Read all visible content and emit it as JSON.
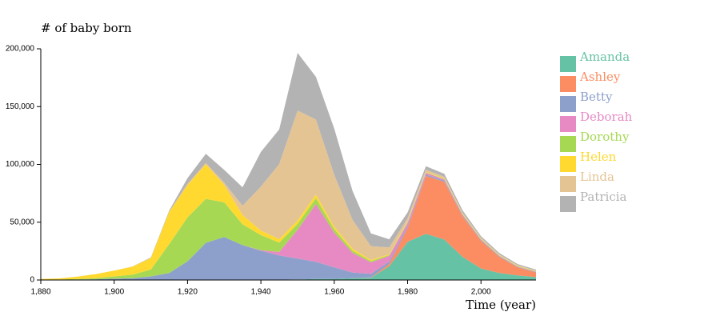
{
  "chart_data": {
    "type": "stacked-area",
    "y_label": "# of baby born",
    "x_label": "Time (year)",
    "x": [
      1880,
      1885,
      1890,
      1895,
      1900,
      1905,
      1910,
      1915,
      1920,
      1925,
      1930,
      1935,
      1940,
      1945,
      1950,
      1955,
      1960,
      1965,
      1970,
      1975,
      1980,
      1985,
      1990,
      1995,
      2000,
      2005,
      2010,
      2015
    ],
    "xlim": [
      1880,
      2015
    ],
    "xticks": [
      {
        "value": 1880,
        "label": "1,880"
      },
      {
        "value": 1900,
        "label": "1,900"
      },
      {
        "value": 1920,
        "label": "1,920"
      },
      {
        "value": 1940,
        "label": "1,940"
      },
      {
        "value": 1960,
        "label": "1,960"
      },
      {
        "value": 1980,
        "label": "1,980"
      },
      {
        "value": 2000,
        "label": "2,000"
      }
    ],
    "ylim": [
      0,
      200000
    ],
    "yticks": [
      0,
      {
        "value": 50000,
        "label": "50,000"
      },
      {
        "value": 100000,
        "label": "100,000"
      },
      {
        "value": 150000,
        "label": "150,000"
      },
      {
        "value": 200000,
        "label": "200,000"
      }
    ],
    "series": [
      {
        "name": "Amanda",
        "color": "#66c2a5",
        "values": [
          100,
          100,
          100,
          100,
          100,
          100,
          100,
          100,
          200,
          200,
          200,
          200,
          300,
          300,
          500,
          800,
          1000,
          1500,
          2000,
          12000,
          33000,
          40000,
          35000,
          20000,
          10000,
          6000,
          4000,
          2500
        ]
      },
      {
        "name": "Ashley",
        "color": "#fc8d62",
        "values": [
          0,
          0,
          0,
          0,
          0,
          0,
          0,
          0,
          0,
          0,
          0,
          0,
          0,
          0,
          0,
          0,
          0,
          0,
          300,
          2000,
          12000,
          50000,
          50000,
          35000,
          24000,
          14000,
          7000,
          4000
        ]
      },
      {
        "name": "Betty",
        "color": "#8da0cb",
        "values": [
          0,
          100,
          300,
          500,
          1000,
          1500,
          3000,
          6000,
          16000,
          32000,
          37000,
          30000,
          25000,
          21000,
          18000,
          15000,
          10000,
          5000,
          3000,
          2000,
          1500,
          1200,
          1000,
          800,
          600,
          500,
          400,
          400
        ]
      },
      {
        "name": "Deborah",
        "color": "#e78ac3",
        "values": [
          0,
          0,
          0,
          0,
          0,
          0,
          0,
          0,
          0,
          0,
          0,
          0,
          500,
          3000,
          25000,
          50000,
          30000,
          17000,
          10000,
          5000,
          3000,
          1500,
          1000,
          700,
          500,
          400,
          300,
          300
        ]
      },
      {
        "name": "Dorothy",
        "color": "#a6d854",
        "values": [
          100,
          200,
          500,
          1000,
          2000,
          3000,
          6000,
          25000,
          38000,
          38000,
          30000,
          18000,
          13000,
          8000,
          5000,
          5000,
          3000,
          2000,
          1000,
          600,
          500,
          400,
          400,
          400,
          300,
          300,
          300,
          300
        ]
      },
      {
        "name": "Helen",
        "color": "#ffd92f",
        "values": [
          600,
          1000,
          2000,
          3500,
          5000,
          7000,
          10000,
          28000,
          28000,
          30000,
          15000,
          8000,
          4000,
          3000,
          3000,
          3000,
          2000,
          1500,
          1000,
          600,
          500,
          400,
          400,
          300,
          300,
          300,
          300,
          300
        ]
      },
      {
        "name": "Linda",
        "color": "#e5c494",
        "values": [
          0,
          0,
          0,
          0,
          0,
          0,
          0,
          0,
          1000,
          1000,
          2000,
          8000,
          38000,
          65000,
          95000,
          65000,
          45000,
          25000,
          12000,
          6000,
          3000,
          2000,
          1500,
          1000,
          800,
          600,
          500,
          400
        ]
      },
      {
        "name": "Patricia",
        "color": "#b3b3b3",
        "values": [
          0,
          0,
          0,
          0,
          0,
          100,
          500,
          1000,
          5000,
          8000,
          11000,
          16000,
          30000,
          30000,
          50000,
          37000,
          40000,
          25000,
          11000,
          7000,
          5000,
          3000,
          2500,
          2000,
          1500,
          1200,
          1000,
          800
        ]
      }
    ]
  }
}
